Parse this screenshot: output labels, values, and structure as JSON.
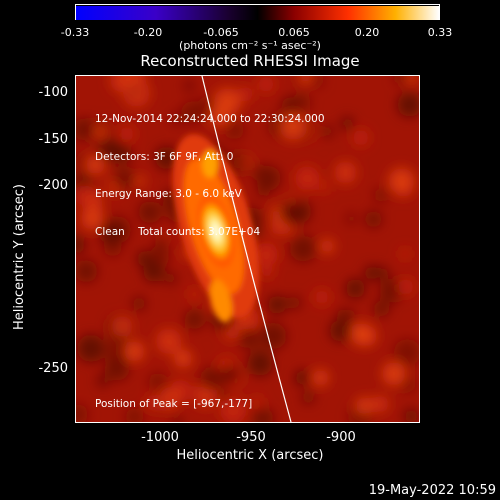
{
  "colorbar": {
    "ticks": [
      "-0.33",
      "-0.20",
      "-0.065",
      "0.065",
      "0.20",
      "0.33"
    ],
    "units": "(photons cm⁻² s⁻¹ asec⁻²)"
  },
  "title": "Reconstructed RHESSI Image",
  "info": {
    "time_range": "12-Nov-2014 22:24:24.000 to 22:30:24.000",
    "detectors": "Detectors: 3F 6F 9F, Att: 0",
    "energy": "Energy Range: 3.0 - 6.0 keV",
    "clean": "Clean    Total counts: 3.07E+04"
  },
  "peak_label": "Position of Peak = [-967,-177]",
  "axes": {
    "ylabel": "Heliocentric Y (arcsec)",
    "xlabel": "Heliocentric X (arcsec)",
    "yticks": [
      "-100",
      "-150",
      "-200",
      "-250"
    ],
    "xticks": [
      "-1000",
      "-950",
      "-900"
    ]
  },
  "footer_date": "19-May-2022 10:59",
  "colors": {
    "background": "#000000",
    "limb": "#ffffff",
    "text": "#ffffff"
  }
}
